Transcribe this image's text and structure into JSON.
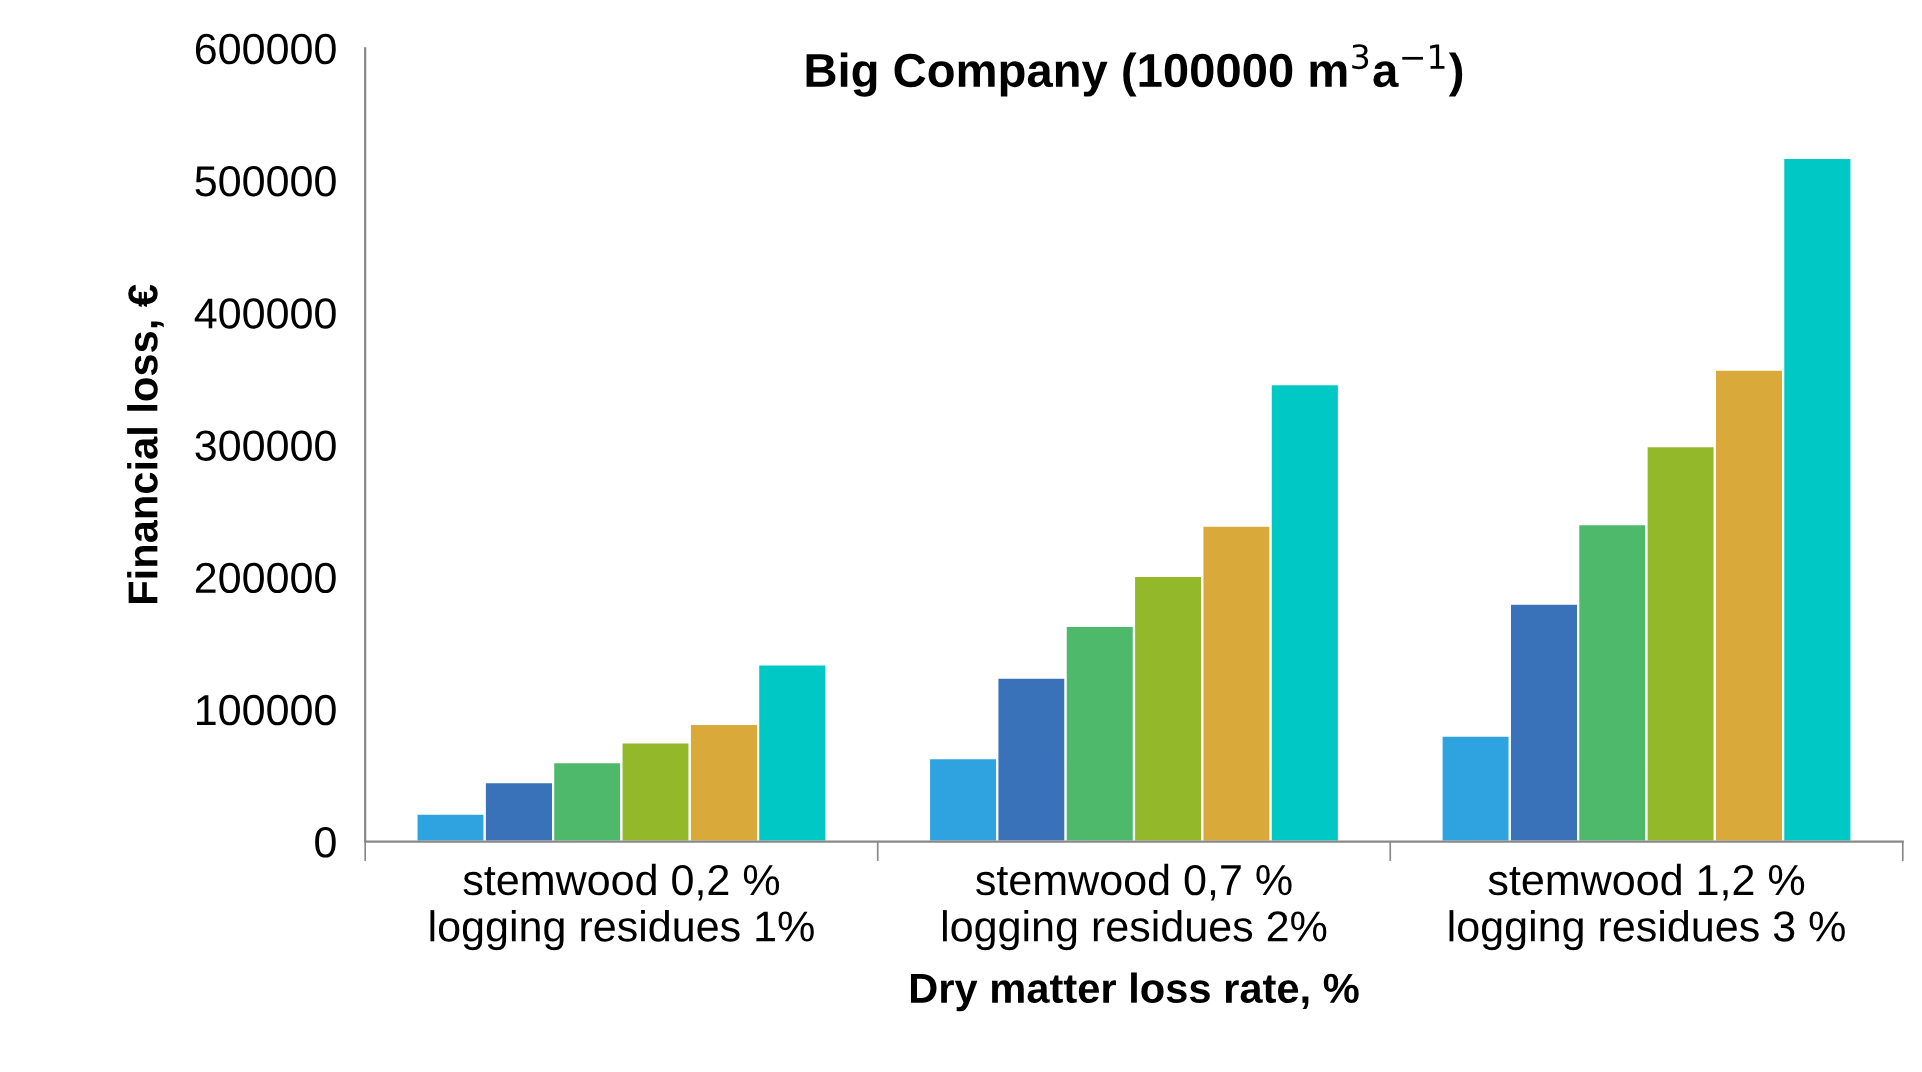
{
  "chart_data": {
    "type": "bar",
    "title": "Big Company (100000 m$^{3}$a$^{−1}$)",
    "xlabel": "Dry matter loss rate, %",
    "ylabel": "Financial loss, €",
    "categories": [
      "stemwood 0,2 %\nlogging residues 1%",
      "stemwood 0,7 %\nlogging residues 2%",
      "stemwood 1,2 %\nlogging residues 3 %"
    ],
    "series": [
      {
        "color": "#2ea3e0",
        "values": [
          21000,
          63000,
          80000
        ]
      },
      {
        "color": "#3a72b9",
        "values": [
          45000,
          124000,
          180000
        ]
      },
      {
        "color": "#4fb96b",
        "values": [
          60000,
          163000,
          240000
        ]
      },
      {
        "color": "#93b82a",
        "values": [
          75000,
          201000,
          299000
        ]
      },
      {
        "color": "#d9a93a",
        "values": [
          89000,
          239000,
          357000
        ]
      },
      {
        "color": "#00c8c4",
        "values": [
          134000,
          346000,
          517000
        ]
      }
    ],
    "ylim": [
      0,
      600000
    ],
    "yticks": [
      0,
      100000,
      200000,
      300000,
      400000,
      500000,
      600000
    ],
    "grid": false
  }
}
